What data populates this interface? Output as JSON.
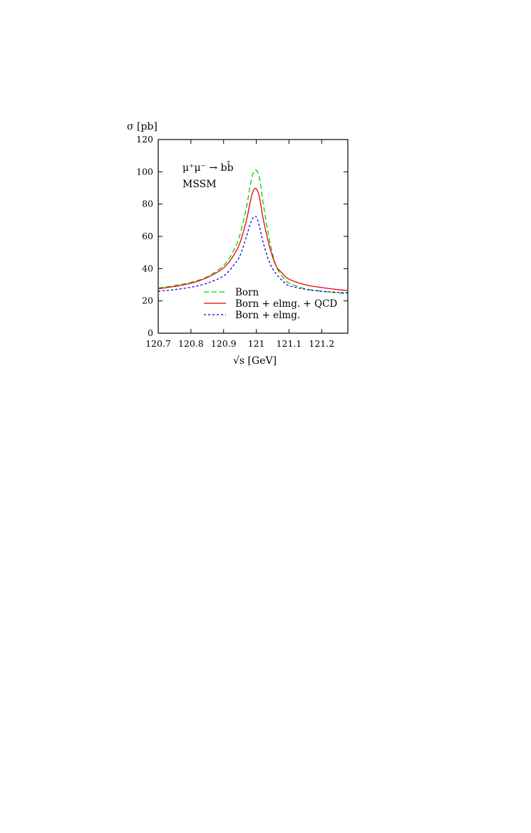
{
  "chart_data": {
    "type": "line",
    "xlabel": "√s [GeV]",
    "ylabel": "σ [pb]",
    "xlim": [
      120.7,
      121.28
    ],
    "ylim": [
      0,
      120
    ],
    "x_ticks": [
      120.7,
      120.8,
      120.9,
      121,
      121.1,
      121.2
    ],
    "x_tick_labels": [
      "120.7",
      "120.8",
      "120.9",
      "121",
      "121.1",
      "121.2"
    ],
    "y_ticks": [
      0,
      20,
      40,
      60,
      80,
      100,
      120
    ],
    "y_tick_labels": [
      "0",
      "20",
      "40",
      "60",
      "80",
      "100",
      "120"
    ],
    "annotations": [
      "μ⁺μ⁻ → bb̄",
      "MSSM"
    ],
    "grid": false,
    "legend_position": "lower-right",
    "x": [
      120.7,
      120.75,
      120.8,
      120.85,
      120.9,
      120.93,
      120.95,
      120.97,
      120.98,
      120.99,
      121.0,
      121.01,
      121.02,
      121.04,
      121.06,
      121.08,
      121.1,
      121.15,
      121.2,
      121.25,
      121.28
    ],
    "series": [
      {
        "name": "Born",
        "color": "#00cc00",
        "dash": "7,4",
        "values": [
          28,
          29.5,
          31.5,
          35,
          42,
          51,
          61,
          78,
          90,
          99,
          101,
          96,
          82,
          58,
          42,
          35,
          31,
          27.5,
          26,
          25,
          24.5
        ]
      },
      {
        "name": "Born + elmg. + QCD",
        "color": "#ee0000",
        "dash": "",
        "values": [
          27.5,
          29,
          31,
          34.5,
          40.5,
          48,
          56,
          70,
          80,
          88,
          89.5,
          84,
          72,
          54,
          42,
          37,
          33.5,
          30,
          28.3,
          27,
          26.5
        ]
      },
      {
        "name": "Born + elmg.",
        "color": "#0000dd",
        "dash": "3,3",
        "values": [
          26,
          27,
          28.5,
          31,
          35.5,
          42,
          48,
          60,
          67,
          71.5,
          72,
          66,
          57,
          44,
          37,
          32.5,
          29.5,
          27.2,
          26,
          25.3,
          25
        ]
      }
    ]
  }
}
